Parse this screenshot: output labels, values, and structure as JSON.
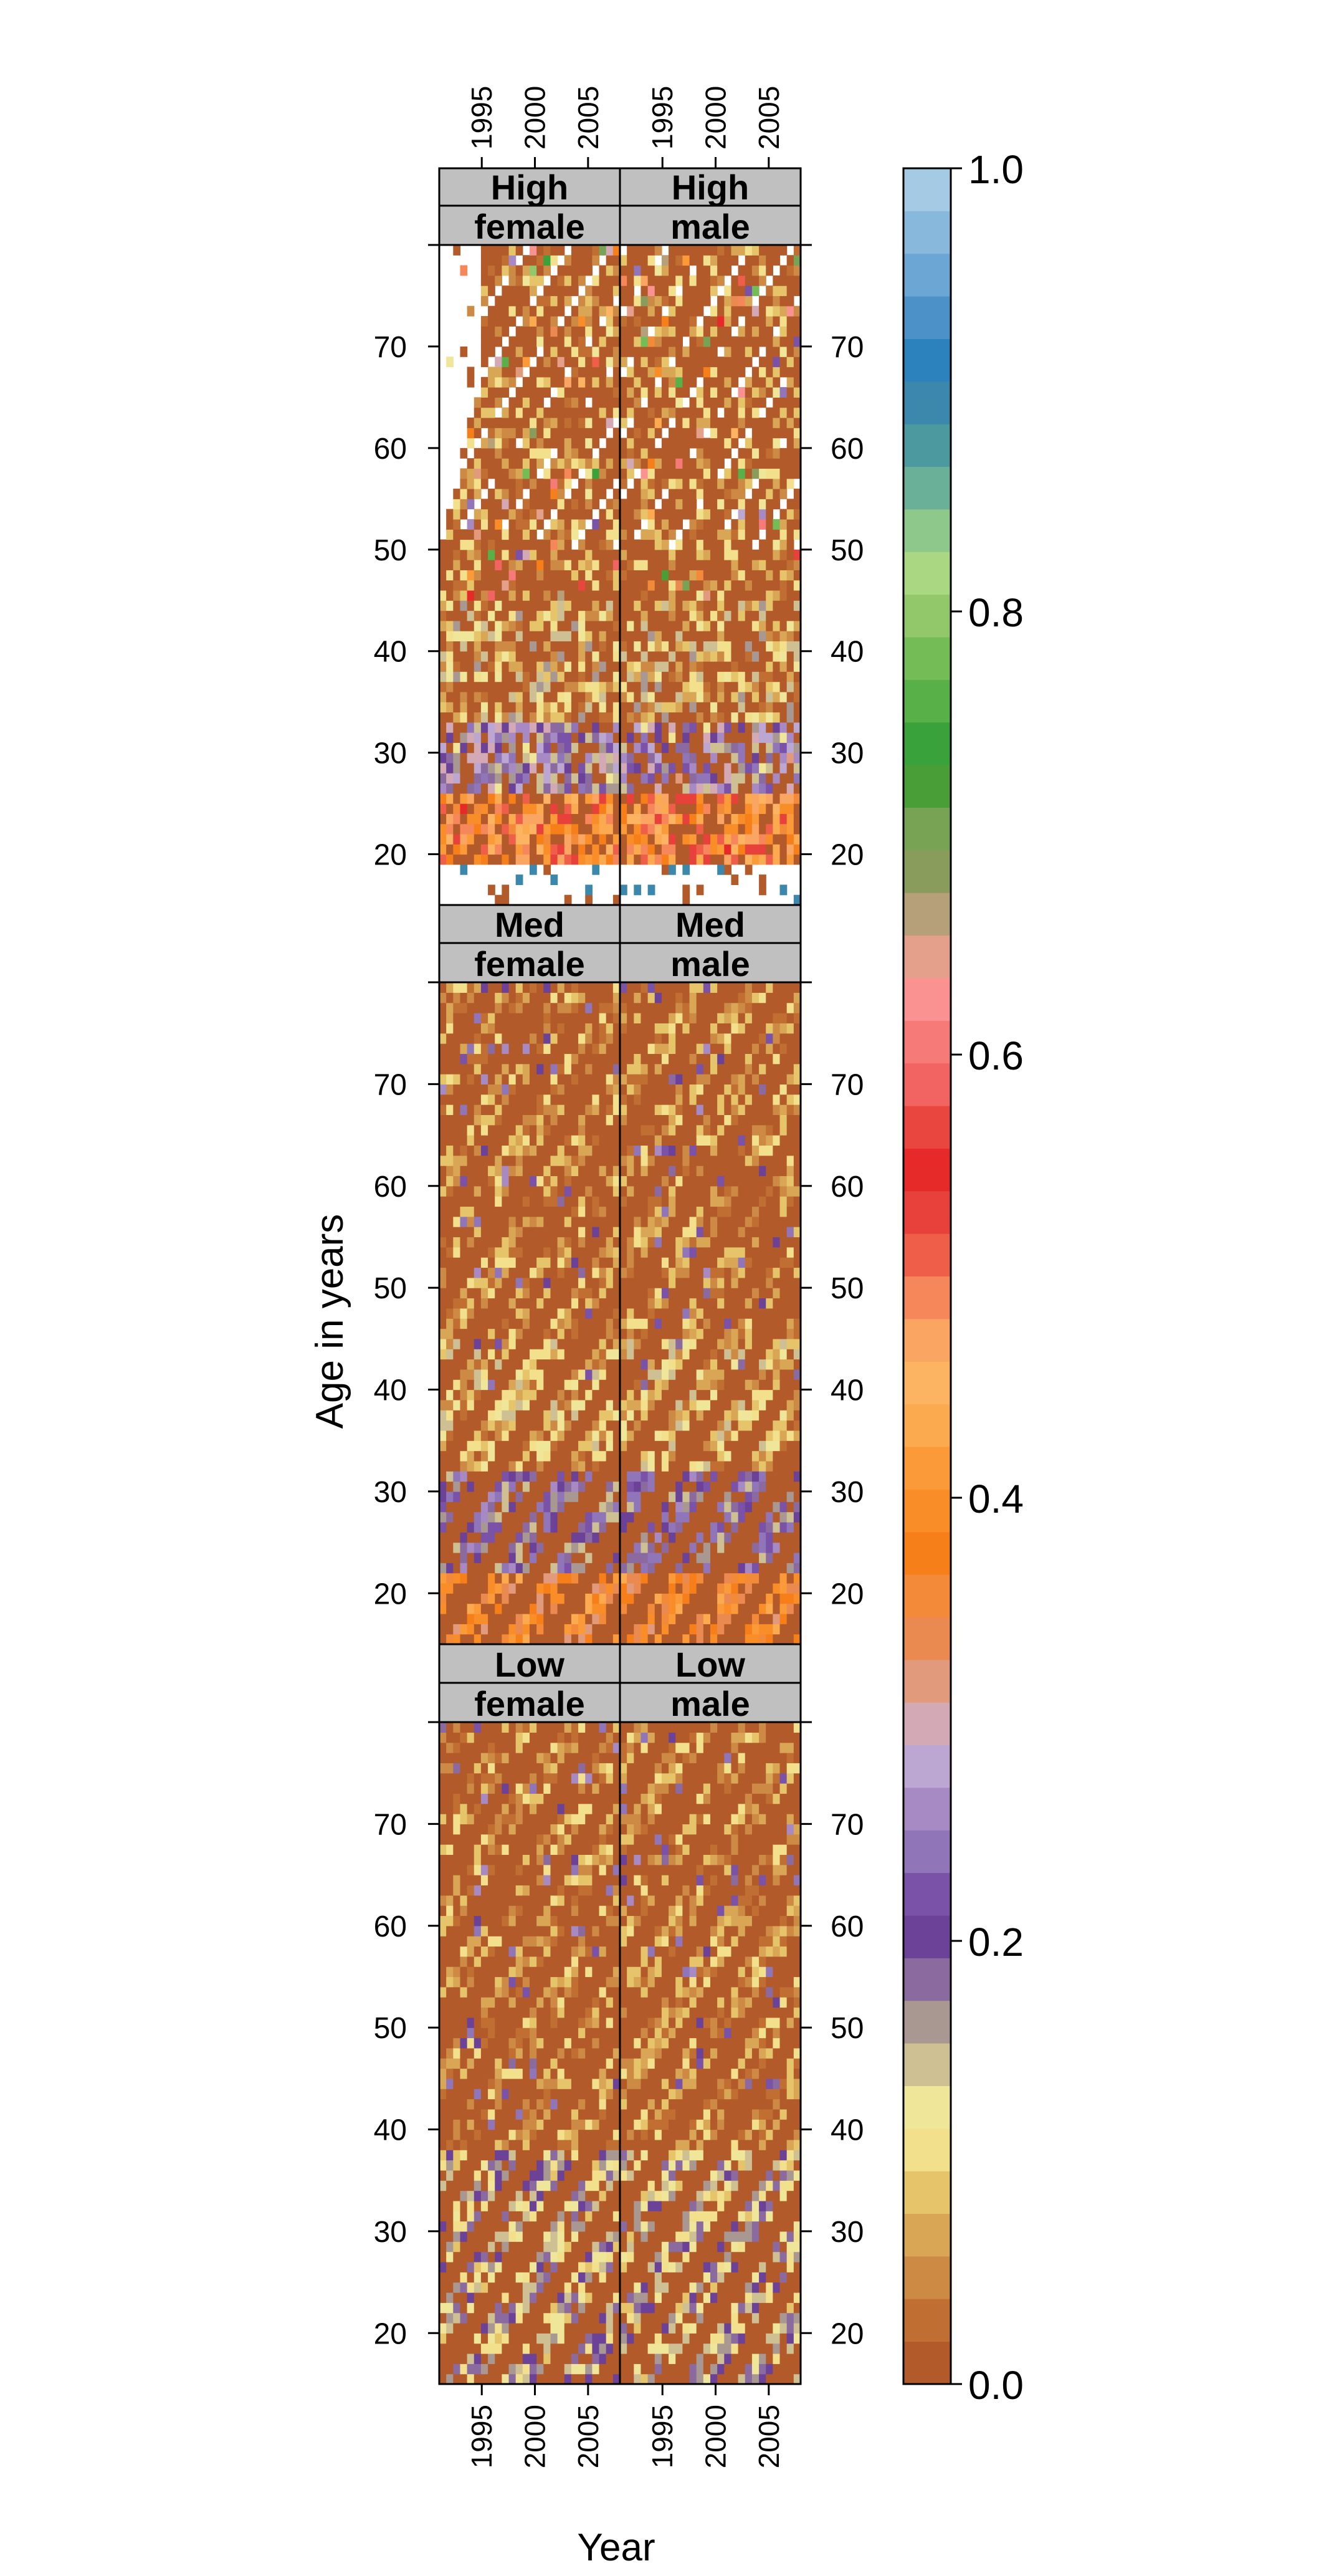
{
  "chart_data": {
    "type": "heatmap",
    "title": "",
    "xlabel": "Year",
    "ylabel": "Age in years",
    "x_ticks": [
      1995,
      2000,
      2005
    ],
    "y_ticks": [
      20,
      30,
      40,
      50,
      60,
      70
    ],
    "x_range": [
      1991,
      2008
    ],
    "y_range": [
      15,
      80
    ],
    "colorbar": {
      "range": [
        0.0,
        1.0
      ],
      "ticks": [
        0.0,
        0.2,
        0.4,
        0.6,
        0.8,
        1.0
      ],
      "tick_labels": [
        "0.0",
        "0.2",
        "0.4",
        "0.6",
        "0.8",
        "1.0"
      ],
      "colors": [
        "#b35a2a",
        "#c06e32",
        "#cc8a44",
        "#d8a655",
        "#e6c46a",
        "#f2e08c",
        "#efe69a",
        "#cfc094",
        "#a99892",
        "#8b6aa0",
        "#6b4298",
        "#7a52a8",
        "#9076b8",
        "#a78ac4",
        "#bca6d2",
        "#d4a9b6",
        "#e19a7c",
        "#ea8a50",
        "#f38a3a",
        "#f77f1a",
        "#f98d28",
        "#fb9a38",
        "#fcaa50",
        "#fdb462",
        "#fba562",
        "#f6875a",
        "#ef5e48",
        "#e8403a",
        "#e62a2a",
        "#ea4640",
        "#f16462",
        "#f67a78",
        "#fb9292",
        "#e4a08a",
        "#b6a07a",
        "#8a9c5c",
        "#78a254",
        "#4a9e38",
        "#3aa23a",
        "#58b048",
        "#74bc56",
        "#92c86a",
        "#aad882",
        "#8ec88a",
        "#6ab098",
        "#4c9aa0",
        "#3c88ac",
        "#2c82bc",
        "#4c92c8",
        "#6ca6d4",
        "#88b8dc",
        "#a4cae4"
      ]
    },
    "panels": [
      {
        "strip_top": "High",
        "strip_bottom": "female",
        "row": "High",
        "sex": "female"
      },
      {
        "strip_top": "High",
        "strip_bottom": "male",
        "row": "High",
        "sex": "male"
      },
      {
        "strip_top": "Med",
        "strip_bottom": "female",
        "row": "Med",
        "sex": "female"
      },
      {
        "strip_top": "Med",
        "strip_bottom": "male",
        "row": "Med",
        "sex": "male"
      },
      {
        "strip_top": "Low",
        "strip_bottom": "female",
        "row": "Low",
        "sex": "female"
      },
      {
        "strip_top": "Low",
        "strip_bottom": "male",
        "row": "Low",
        "sex": "male"
      }
    ],
    "cell_value_profile": {
      "High": {
        "ages_16_19": "mostly missing (white) with a few 0.0 and ~0.9 cells",
        "ages_20_26": 0.45,
        "ages_27_33": 0.22,
        "ages_34_45": 0.08,
        "ages_46_80": 0.03,
        "missing_region_female": "upper-left diagonal band ages 52-80"
      },
      "Med": {
        "ages_16_22": 0.38,
        "ages_23_32": 0.2,
        "ages_33_45": 0.09,
        "ages_46_80": 0.05
      },
      "Low": {
        "ages_16_38": 0.15,
        "ages_39_80": 0.05
      }
    },
    "grid": false,
    "legend": "colorbar at right"
  }
}
